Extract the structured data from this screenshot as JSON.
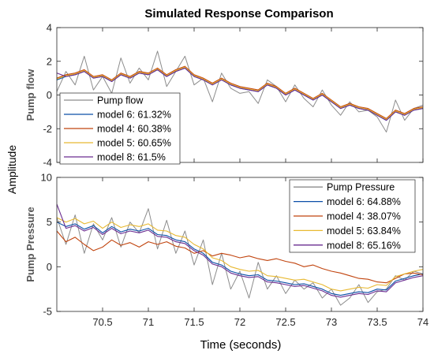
{
  "figure": {
    "title": "Simulated Response Comparison",
    "shared_ylabel": "Amplitude",
    "shared_xlabel": "Time (seconds)"
  },
  "chart_data": [
    {
      "type": "line",
      "ylabel": "Pump flow",
      "xlim": [
        70.0,
        74.0
      ],
      "ylim": [
        -4,
        4
      ],
      "xticks": [
        70.5,
        71,
        71.5,
        72,
        72.5,
        73,
        73.5,
        74
      ],
      "yticks": [
        -4,
        -2,
        0,
        2,
        4
      ],
      "grid": false,
      "legend_position": "lower-left",
      "x": [
        70.0,
        70.1,
        70.2,
        70.3,
        70.4,
        70.5,
        70.6,
        70.7,
        70.8,
        70.9,
        71.0,
        71.1,
        71.2,
        71.3,
        71.4,
        71.5,
        71.6,
        71.7,
        71.8,
        71.9,
        72.0,
        72.1,
        72.2,
        72.3,
        72.4,
        72.5,
        72.6,
        72.7,
        72.8,
        72.9,
        73.0,
        73.1,
        73.2,
        73.3,
        73.4,
        73.5,
        73.6,
        73.7,
        73.8,
        73.9,
        74.0
      ],
      "series": [
        {
          "name": "Pump flow",
          "color": "#8c8c8c",
          "width": 1.0,
          "values": [
            0.2,
            1.4,
            0.6,
            2.3,
            0.3,
            1.1,
            0.1,
            2.2,
            0.7,
            1.6,
            0.9,
            2.6,
            0.5,
            1.4,
            2.3,
            0.6,
            1.0,
            -0.4,
            1.3,
            0.4,
            0.1,
            0.2,
            -0.5,
            0.9,
            0.5,
            -0.4,
            0.6,
            -0.2,
            -0.7,
            0.3,
            -0.6,
            -1.2,
            -0.4,
            -1.0,
            -0.9,
            -1.3,
            -2.2,
            -0.3,
            -1.5,
            -0.8,
            -0.6
          ]
        },
        {
          "name": "model 6: 61.32%",
          "color": "#0b4fa8",
          "width": 1.1,
          "values": [
            0.9,
            1.1,
            1.2,
            1.4,
            1.0,
            1.1,
            0.8,
            1.2,
            1.0,
            1.3,
            1.2,
            1.5,
            1.1,
            1.4,
            1.6,
            1.1,
            0.9,
            0.6,
            0.9,
            0.6,
            0.4,
            0.3,
            0.2,
            0.6,
            0.4,
            0.0,
            0.3,
            0.0,
            -0.3,
            0.0,
            -0.4,
            -0.8,
            -0.6,
            -0.8,
            -0.9,
            -1.2,
            -1.5,
            -1.0,
            -1.2,
            -0.9,
            -0.8
          ]
        },
        {
          "name": "model 4: 60.38%",
          "color": "#c1440e",
          "width": 1.1,
          "values": [
            1.0,
            1.2,
            1.3,
            1.5,
            1.1,
            1.2,
            0.9,
            1.3,
            1.1,
            1.4,
            1.3,
            1.6,
            1.2,
            1.5,
            1.7,
            1.2,
            1.0,
            0.7,
            1.0,
            0.7,
            0.5,
            0.4,
            0.3,
            0.7,
            0.5,
            0.1,
            0.4,
            0.1,
            -0.2,
            0.1,
            -0.3,
            -0.7,
            -0.5,
            -0.7,
            -0.8,
            -1.1,
            -1.4,
            -0.9,
            -1.1,
            -0.8,
            -0.7
          ]
        },
        {
          "name": "model 5: 60.65%",
          "color": "#e8b931",
          "width": 1.1,
          "values": [
            0.95,
            1.15,
            1.25,
            1.45,
            1.05,
            1.15,
            0.85,
            1.25,
            1.05,
            1.35,
            1.25,
            1.55,
            1.15,
            1.45,
            1.65,
            1.15,
            0.95,
            0.65,
            0.95,
            0.65,
            0.45,
            0.35,
            0.25,
            0.65,
            0.45,
            0.05,
            0.35,
            0.05,
            -0.25,
            0.05,
            -0.35,
            -0.75,
            -0.55,
            -0.75,
            -0.85,
            -1.15,
            -1.45,
            -0.95,
            -1.15,
            -0.85,
            -0.75
          ]
        },
        {
          "name": "model 8: 61.5%",
          "color": "#6a2c91",
          "width": 1.1,
          "values": [
            1.3,
            1.1,
            1.2,
            1.4,
            1.0,
            1.1,
            0.8,
            1.2,
            1.0,
            1.3,
            1.2,
            1.5,
            1.1,
            1.4,
            1.6,
            1.1,
            0.9,
            0.6,
            0.9,
            0.6,
            0.4,
            0.3,
            0.2,
            0.6,
            0.4,
            0.0,
            0.3,
            0.0,
            -0.3,
            0.0,
            -0.4,
            -0.8,
            -0.6,
            -0.8,
            -0.9,
            -1.2,
            -1.5,
            -1.0,
            -1.2,
            -0.9,
            -0.8
          ]
        }
      ]
    },
    {
      "type": "line",
      "ylabel": "Pump Pressure",
      "xlabel": "Time (seconds)",
      "xlim": [
        70.0,
        74.0
      ],
      "ylim": [
        -5,
        10
      ],
      "xticks": [
        70.5,
        71,
        71.5,
        72,
        72.5,
        73,
        73.5,
        74
      ],
      "yticks": [
        -5,
        0,
        5,
        10
      ],
      "grid": false,
      "legend_position": "top-right",
      "x": [
        70.0,
        70.1,
        70.2,
        70.3,
        70.4,
        70.5,
        70.6,
        70.7,
        70.8,
        70.9,
        71.0,
        71.1,
        71.2,
        71.3,
        71.4,
        71.5,
        71.6,
        71.7,
        71.8,
        71.9,
        72.0,
        72.1,
        72.2,
        72.3,
        72.4,
        72.5,
        72.6,
        72.7,
        72.8,
        72.9,
        73.0,
        73.1,
        73.2,
        73.3,
        73.4,
        73.5,
        73.6,
        73.7,
        73.8,
        73.9,
        74.0
      ],
      "series": [
        {
          "name": "Pump Pressure",
          "color": "#8c8c8c",
          "width": 1.0,
          "values": [
            5.5,
            2.5,
            5.8,
            1.5,
            4.8,
            3.0,
            5.5,
            2.2,
            5.0,
            3.8,
            6.5,
            2.0,
            5.2,
            1.5,
            4.0,
            0.2,
            3.0,
            -2.0,
            1.5,
            -2.5,
            -0.5,
            -3.5,
            0.5,
            -2.5,
            -1.0,
            -3.0,
            -1.5,
            -2.5,
            -1.8,
            -3.5,
            -2.5,
            -4.3,
            -3.5,
            -2.0,
            -4.0,
            -2.8,
            -2.5,
            -1.0,
            -1.5,
            -0.5,
            -0.8
          ]
        },
        {
          "name": "model 6: 64.88%",
          "color": "#0b4fa8",
          "width": 1.1,
          "values": [
            5.0,
            4.5,
            4.8,
            4.2,
            4.6,
            3.8,
            4.5,
            3.9,
            4.2,
            4.0,
            4.3,
            3.6,
            3.5,
            3.0,
            2.8,
            2.0,
            1.5,
            0.5,
            0.2,
            -0.5,
            -0.8,
            -1.0,
            -0.9,
            -1.5,
            -1.6,
            -1.8,
            -2.0,
            -1.9,
            -2.2,
            -2.5,
            -3.0,
            -3.2,
            -3.0,
            -2.8,
            -2.9,
            -2.5,
            -2.6,
            -1.6,
            -1.3,
            -1.0,
            -0.8
          ]
        },
        {
          "name": "model 4: 38.07%",
          "color": "#c1440e",
          "width": 1.1,
          "values": [
            4.0,
            2.8,
            3.3,
            2.5,
            1.8,
            2.2,
            3.0,
            2.4,
            2.7,
            2.2,
            2.8,
            2.5,
            2.8,
            2.3,
            2.1,
            1.5,
            1.8,
            1.2,
            1.5,
            1.3,
            1.0,
            1.2,
            0.9,
            0.7,
            0.9,
            0.6,
            0.4,
            0.0,
            0.2,
            -0.2,
            -0.5,
            -0.7,
            -1.0,
            -1.3,
            -1.4,
            -1.7,
            -1.8,
            -1.3,
            -0.8,
            -0.7,
            -0.9
          ]
        },
        {
          "name": "model 5: 63.84%",
          "color": "#e8b931",
          "width": 1.1,
          "values": [
            5.5,
            5.0,
            5.4,
            4.8,
            5.1,
            4.3,
            5.0,
            4.4,
            4.7,
            4.5,
            4.8,
            4.1,
            4.0,
            3.5,
            3.3,
            2.5,
            2.0,
            1.0,
            0.7,
            0.0,
            -0.3,
            -0.5,
            -0.4,
            -1.0,
            -1.1,
            -1.3,
            -1.5,
            -1.4,
            -1.7,
            -2.0,
            -2.5,
            -2.7,
            -2.5,
            -2.3,
            -2.4,
            -2.0,
            -2.1,
            -1.1,
            -0.8,
            -0.5,
            -0.3
          ]
        },
        {
          "name": "model 8: 65.16%",
          "color": "#6a2c91",
          "width": 1.1,
          "values": [
            7.0,
            4.3,
            4.6,
            4.0,
            4.4,
            3.6,
            4.3,
            3.7,
            4.0,
            3.8,
            4.1,
            3.4,
            3.3,
            2.8,
            2.6,
            1.8,
            1.3,
            0.3,
            0.0,
            -0.7,
            -1.0,
            -1.2,
            -1.1,
            -1.7,
            -1.8,
            -2.0,
            -2.2,
            -2.1,
            -2.4,
            -2.7,
            -3.2,
            -3.4,
            -3.2,
            -3.0,
            -3.1,
            -2.7,
            -2.8,
            -1.8,
            -1.5,
            -1.2,
            -1.0
          ]
        }
      ]
    }
  ]
}
